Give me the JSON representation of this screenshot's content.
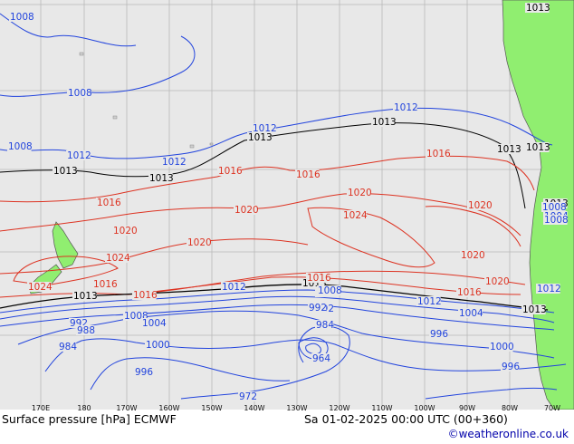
{
  "map": {
    "title": "Surface pressure [hPa] ECMWF",
    "valid_time": "Sa 01-02-2025 00:00 UTC (00+360)",
    "credit": "©weatheronline.co.uk",
    "colors": {
      "ocean": "#e8e8e8",
      "land": "#90ee70",
      "low_isobar": "#2244dd",
      "high_isobar": "#dd3322",
      "standard_isobar": "#000000",
      "grid": "#b8b8b8"
    },
    "lon_labels": [
      "170E",
      "180",
      "170W",
      "160W",
      "150W",
      "140W",
      "130W",
      "120W",
      "110W",
      "100W",
      "90W",
      "80W",
      "70W"
    ],
    "isobar_labels": [
      {
        "text": "1008",
        "color": "blue"
      },
      {
        "text": "1008",
        "color": "blue"
      },
      {
        "text": "1008",
        "color": "blue"
      },
      {
        "text": "1012",
        "color": "blue"
      },
      {
        "text": "1012",
        "color": "blue"
      },
      {
        "text": "1012",
        "color": "blue"
      },
      {
        "text": "1012",
        "color": "blue"
      },
      {
        "text": "1013",
        "color": "black"
      },
      {
        "text": "1013",
        "color": "black"
      },
      {
        "text": "1013",
        "color": "black"
      },
      {
        "text": "1013",
        "color": "black"
      },
      {
        "text": "1016",
        "color": "red"
      },
      {
        "text": "1016",
        "color": "red"
      },
      {
        "text": "1016",
        "color": "red"
      },
      {
        "text": "1016",
        "color": "red"
      },
      {
        "text": "1020",
        "color": "red"
      },
      {
        "text": "1020",
        "color": "red"
      },
      {
        "text": "1020",
        "color": "red"
      },
      {
        "text": "1024",
        "color": "red"
      },
      {
        "text": "1024",
        "color": "red"
      },
      {
        "text": "1024",
        "color": "red"
      },
      {
        "text": "1020",
        "color": "red"
      },
      {
        "text": "1020",
        "color": "red"
      },
      {
        "text": "1020",
        "color": "red"
      },
      {
        "text": "1016",
        "color": "red"
      },
      {
        "text": "1016",
        "color": "red"
      },
      {
        "text": "1013",
        "color": "black"
      },
      {
        "text": "1013",
        "color": "black"
      },
      {
        "text": "1012",
        "color": "blue"
      },
      {
        "text": "1012",
        "color": "blue"
      },
      {
        "text": "1008",
        "color": "blue"
      },
      {
        "text": "1008",
        "color": "blue"
      },
      {
        "text": "1004",
        "color": "blue"
      },
      {
        "text": "1004",
        "color": "blue"
      },
      {
        "text": "1000",
        "color": "blue"
      },
      {
        "text": "1000",
        "color": "blue"
      },
      {
        "text": "996",
        "color": "blue"
      },
      {
        "text": "996",
        "color": "blue"
      },
      {
        "text": "996",
        "color": "blue"
      },
      {
        "text": "992",
        "color": "blue"
      },
      {
        "text": "992",
        "color": "blue"
      },
      {
        "text": "992",
        "color": "blue"
      },
      {
        "text": "988",
        "color": "blue"
      },
      {
        "text": "984",
        "color": "blue"
      },
      {
        "text": "984",
        "color": "blue"
      },
      {
        "text": "964",
        "color": "blue"
      },
      {
        "text": "972",
        "color": "blue"
      },
      {
        "text": "1013",
        "color": "black"
      },
      {
        "text": "1013",
        "color": "black"
      },
      {
        "text": "1013",
        "color": "black"
      },
      {
        "text": "1016",
        "color": "red"
      },
      {
        "text": "1016",
        "color": "red"
      },
      {
        "text": "1008",
        "color": "blue"
      },
      {
        "text": "1012",
        "color": "blue"
      },
      {
        "text": "1008",
        "color": "blue"
      },
      {
        "text": "1004",
        "color": "blue"
      },
      {
        "text": "1008",
        "color": "blue"
      },
      {
        "text": "1013",
        "color": "black"
      },
      {
        "text": "1013",
        "color": "black"
      },
      {
        "text": "1020",
        "color": "red"
      }
    ]
  }
}
